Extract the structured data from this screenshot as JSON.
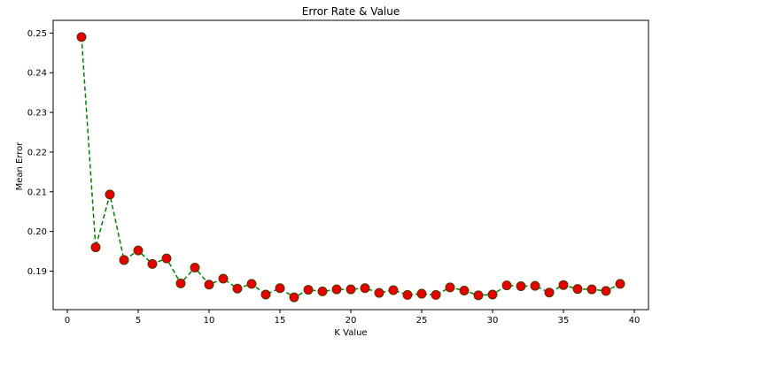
{
  "chart_data": {
    "type": "line",
    "title": "Error Rate & Value",
    "xlabel": "K Value",
    "ylabel": "Mean Error",
    "xlim": [
      -1,
      41
    ],
    "ylim": [
      0.1803,
      0.2532
    ],
    "xticks": [
      0,
      5,
      10,
      15,
      20,
      25,
      30,
      35,
      40
    ],
    "yticks": [
      0.19,
      0.2,
      0.21,
      0.22,
      0.23,
      0.24,
      0.25
    ],
    "ytick_labels": [
      "0.19",
      "0.20",
      "0.21",
      "0.22",
      "0.23",
      "0.24",
      "0.25"
    ],
    "grid": false,
    "legend": false,
    "style": {
      "line_color": "#008000",
      "line_style": "dashed",
      "marker": "circle",
      "marker_face": "#e60000",
      "marker_edge": "#4d3b00"
    },
    "series": [
      {
        "x": [
          1,
          2,
          3,
          4,
          5,
          6,
          7,
          8,
          9,
          10,
          11,
          12,
          13,
          14,
          15,
          16,
          17,
          18,
          19,
          20,
          21,
          22,
          23,
          24,
          25,
          26,
          27,
          28,
          29,
          30,
          31,
          32,
          33,
          34,
          35,
          36,
          37,
          38,
          39
        ],
        "values": [
          0.249,
          0.196,
          0.2093,
          0.1928,
          0.1952,
          0.1918,
          0.1932,
          0.1869,
          0.1909,
          0.1866,
          0.1881,
          0.1856,
          0.1868,
          0.1841,
          0.1857,
          0.1834,
          0.1853,
          0.1849,
          0.1854,
          0.1854,
          0.1857,
          0.1845,
          0.1852,
          0.184,
          0.1843,
          0.184,
          0.1859,
          0.1851,
          0.1839,
          0.1841,
          0.1864,
          0.1862,
          0.1863,
          0.1846,
          0.1865,
          0.1855,
          0.1854,
          0.185,
          0.1868
        ]
      }
    ]
  }
}
